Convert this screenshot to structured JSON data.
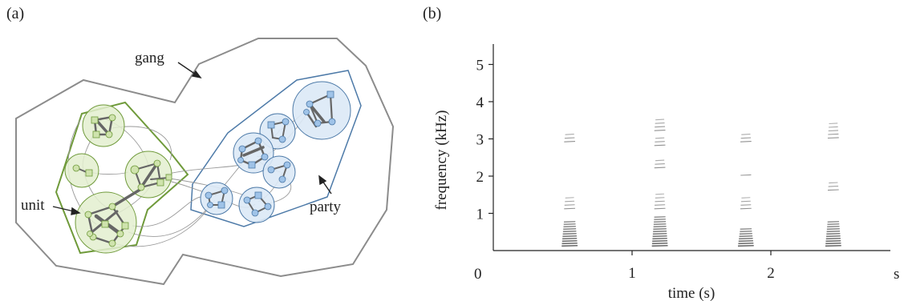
{
  "panel_a": {
    "label": "(a)",
    "annotations": {
      "gang": "gang",
      "unit": "unit",
      "party": "party"
    },
    "colors": {
      "gang_outline": "#8c8c8c",
      "unit_outline": "#6f9a3a",
      "unit_fill": "#e3efcf",
      "party_outline": "#4d7aa8",
      "party_fill": "#dbe9f6",
      "edge": "#9a9a9a",
      "strong_edge": "#666666"
    }
  },
  "panel_b": {
    "label": "(b)",
    "chart_data": {
      "type": "spectrogram",
      "xlabel": "time (s)",
      "ylabel": "frequency (kHz)",
      "x_ticks": [
        "0",
        "1",
        "2"
      ],
      "x_unit_tick": "s",
      "y_ticks": [
        "1",
        "2",
        "3",
        "4",
        "5"
      ],
      "xlim": [
        0,
        2.55
      ],
      "ylim": [
        0,
        5.5
      ],
      "calls": [
        {
          "time": 0.55,
          "bands": [
            [
              0.1,
              0.8
            ],
            [
              1.1,
              1.5
            ],
            [
              2.9,
              3.2
            ]
          ]
        },
        {
          "time": 1.2,
          "bands": [
            [
              0.1,
              0.9
            ],
            [
              1.1,
              1.6
            ],
            [
              2.2,
              2.5
            ],
            [
              2.8,
              3.1
            ],
            [
              3.2,
              3.6
            ]
          ]
        },
        {
          "time": 1.82,
          "bands": [
            [
              0.1,
              0.6
            ],
            [
              1.1,
              1.5
            ],
            [
              2.0,
              2.1
            ],
            [
              2.9,
              3.2
            ]
          ]
        },
        {
          "time": 2.45,
          "bands": [
            [
              0.1,
              0.8
            ],
            [
              1.6,
              1.9
            ],
            [
              3.0,
              3.5
            ]
          ]
        }
      ]
    }
  }
}
